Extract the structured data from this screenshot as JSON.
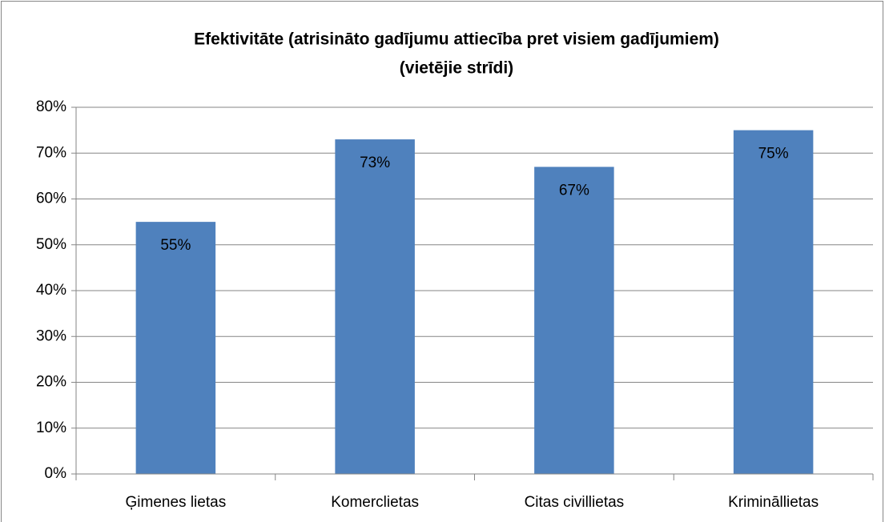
{
  "chart_data": {
    "type": "bar",
    "title": [
      "Efektivitāte (atrisināto gadījumu attiecība pret visiem gadījumiem)",
      "(vietējie strīdi)"
    ],
    "categories": [
      "Ģimenes lietas",
      "Komerclietas",
      "Citas civillietas",
      "Krimināllietas"
    ],
    "values": [
      55,
      73,
      67,
      75
    ],
    "value_labels": [
      "55%",
      "73%",
      "67%",
      "75%"
    ],
    "color": "#4f81bd",
    "ylim": [
      0,
      80
    ],
    "yticks": [
      {
        "value": 0,
        "label": "0%"
      },
      {
        "value": 10,
        "label": "10%"
      },
      {
        "value": 20,
        "label": "20%"
      },
      {
        "value": 30,
        "label": "30%"
      },
      {
        "value": 40,
        "label": "40%"
      },
      {
        "value": 50,
        "label": "50%"
      },
      {
        "value": 60,
        "label": "60%"
      },
      {
        "value": 70,
        "label": "70%"
      },
      {
        "value": 80,
        "label": "80%"
      }
    ],
    "grid": true
  }
}
